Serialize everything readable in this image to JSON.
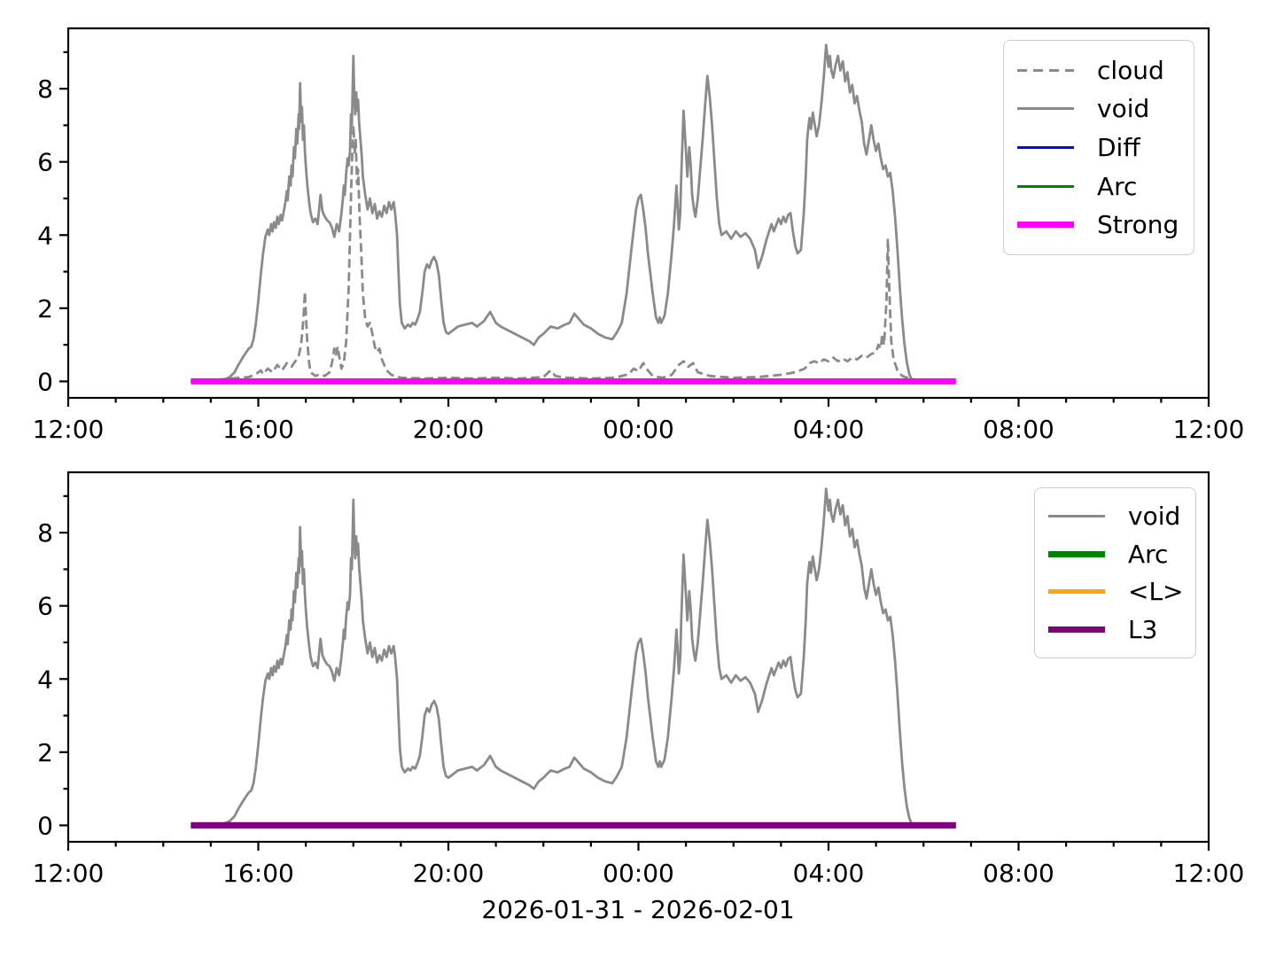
{
  "figure": {
    "background": "#ffffff",
    "xlabel": "2026-01-31 - 2026-02-01"
  },
  "shared": {
    "note_x_units": "hours after 12:00",
    "flat_zero": [
      [
        2.58,
        0
      ],
      [
        18.68,
        0
      ]
    ],
    "void": [
      [
        2.58,
        0
      ],
      [
        3.0,
        0.02
      ],
      [
        3.2,
        0.04
      ],
      [
        3.3,
        0.06
      ],
      [
        3.4,
        0.12
      ],
      [
        3.5,
        0.25
      ],
      [
        3.58,
        0.45
      ],
      [
        3.65,
        0.6
      ],
      [
        3.72,
        0.75
      ],
      [
        3.8,
        0.9
      ],
      [
        3.85,
        0.95
      ],
      [
        3.9,
        1.15
      ],
      [
        3.95,
        1.6
      ],
      [
        4.0,
        2.2
      ],
      [
        4.05,
        2.9
      ],
      [
        4.1,
        3.5
      ],
      [
        4.15,
        3.95
      ],
      [
        4.2,
        4.15
      ],
      [
        4.23,
        4.0
      ],
      [
        4.27,
        4.3
      ],
      [
        4.3,
        4.1
      ],
      [
        4.33,
        4.35
      ],
      [
        4.37,
        4.2
      ],
      [
        4.4,
        4.5
      ],
      [
        4.43,
        4.3
      ],
      [
        4.47,
        4.55
      ],
      [
        4.5,
        4.4
      ],
      [
        4.53,
        4.6
      ],
      [
        4.57,
        4.9
      ],
      [
        4.6,
        5.2
      ],
      [
        4.62,
        4.95
      ],
      [
        4.65,
        5.6
      ],
      [
        4.68,
        5.35
      ],
      [
        4.7,
        5.9
      ],
      [
        4.72,
        5.6
      ],
      [
        4.75,
        6.4
      ],
      [
        4.77,
        6.1
      ],
      [
        4.8,
        6.9
      ],
      [
        4.82,
        6.5
      ],
      [
        4.85,
        7.3
      ],
      [
        4.86,
        6.9
      ],
      [
        4.88,
        8.15
      ],
      [
        4.9,
        7.1
      ],
      [
        4.92,
        7.5
      ],
      [
        4.94,
        6.6
      ],
      [
        4.96,
        7.0
      ],
      [
        4.98,
        6.3
      ],
      [
        5.0,
        5.9
      ],
      [
        5.03,
        5.4
      ],
      [
        5.07,
        4.9
      ],
      [
        5.1,
        4.6
      ],
      [
        5.15,
        4.35
      ],
      [
        5.2,
        4.45
      ],
      [
        5.25,
        4.3
      ],
      [
        5.31,
        5.1
      ],
      [
        5.35,
        4.65
      ],
      [
        5.4,
        4.5
      ],
      [
        5.45,
        4.4
      ],
      [
        5.5,
        4.35
      ],
      [
        5.55,
        4.2
      ],
      [
        5.6,
        3.95
      ],
      [
        5.65,
        4.3
      ],
      [
        5.7,
        4.1
      ],
      [
        5.75,
        4.6
      ],
      [
        5.78,
        5.0
      ],
      [
        5.8,
        5.35
      ],
      [
        5.82,
        5.1
      ],
      [
        5.85,
        5.7
      ],
      [
        5.88,
        6.1
      ],
      [
        5.9,
        5.9
      ],
      [
        5.93,
        6.3
      ],
      [
        5.95,
        7.3
      ],
      [
        5.97,
        7.0
      ],
      [
        6.0,
        8.9
      ],
      [
        6.02,
        7.8
      ],
      [
        6.04,
        7.3
      ],
      [
        6.06,
        7.9
      ],
      [
        6.08,
        7.4
      ],
      [
        6.1,
        7.7
      ],
      [
        6.12,
        7.1
      ],
      [
        6.15,
        6.6
      ],
      [
        6.18,
        6.1
      ],
      [
        6.2,
        5.6
      ],
      [
        6.25,
        5.1
      ],
      [
        6.3,
        4.7
      ],
      [
        6.35,
        5.0
      ],
      [
        6.4,
        4.6
      ],
      [
        6.45,
        4.85
      ],
      [
        6.5,
        4.45
      ],
      [
        6.55,
        4.65
      ],
      [
        6.6,
        4.5
      ],
      [
        6.65,
        4.8
      ],
      [
        6.7,
        4.6
      ],
      [
        6.75,
        4.9
      ],
      [
        6.8,
        4.7
      ],
      [
        6.85,
        4.9
      ],
      [
        6.88,
        4.6
      ],
      [
        6.92,
        4.0
      ],
      [
        6.95,
        3.0
      ],
      [
        6.98,
        2.1
      ],
      [
        7.02,
        1.6
      ],
      [
        7.08,
        1.45
      ],
      [
        7.15,
        1.55
      ],
      [
        7.2,
        1.5
      ],
      [
        7.25,
        1.6
      ],
      [
        7.3,
        1.55
      ],
      [
        7.35,
        1.7
      ],
      [
        7.4,
        1.9
      ],
      [
        7.45,
        2.4
      ],
      [
        7.5,
        3.0
      ],
      [
        7.55,
        3.2
      ],
      [
        7.6,
        3.1
      ],
      [
        7.65,
        3.3
      ],
      [
        7.7,
        3.4
      ],
      [
        7.75,
        3.25
      ],
      [
        7.8,
        2.9
      ],
      [
        7.85,
        2.2
      ],
      [
        7.9,
        1.6
      ],
      [
        7.95,
        1.35
      ],
      [
        8.0,
        1.3
      ],
      [
        8.1,
        1.4
      ],
      [
        8.2,
        1.5
      ],
      [
        8.35,
        1.55
      ],
      [
        8.5,
        1.6
      ],
      [
        8.6,
        1.5
      ],
      [
        8.75,
        1.65
      ],
      [
        8.88,
        1.9
      ],
      [
        9.0,
        1.6
      ],
      [
        9.1,
        1.5
      ],
      [
        9.25,
        1.4
      ],
      [
        9.4,
        1.3
      ],
      [
        9.55,
        1.2
      ],
      [
        9.7,
        1.1
      ],
      [
        9.8,
        1.0
      ],
      [
        9.9,
        1.2
      ],
      [
        10.0,
        1.3
      ],
      [
        10.15,
        1.5
      ],
      [
        10.3,
        1.45
      ],
      [
        10.45,
        1.55
      ],
      [
        10.55,
        1.6
      ],
      [
        10.65,
        1.85
      ],
      [
        10.75,
        1.7
      ],
      [
        10.85,
        1.55
      ],
      [
        11.0,
        1.45
      ],
      [
        11.15,
        1.3
      ],
      [
        11.3,
        1.2
      ],
      [
        11.45,
        1.15
      ],
      [
        11.55,
        1.35
      ],
      [
        11.65,
        1.6
      ],
      [
        11.75,
        2.4
      ],
      [
        11.85,
        3.6
      ],
      [
        11.95,
        4.7
      ],
      [
        12.0,
        5.0
      ],
      [
        12.05,
        5.1
      ],
      [
        12.1,
        4.7
      ],
      [
        12.15,
        4.2
      ],
      [
        12.2,
        3.5
      ],
      [
        12.3,
        2.4
      ],
      [
        12.37,
        1.75
      ],
      [
        12.42,
        1.6
      ],
      [
        12.45,
        1.75
      ],
      [
        12.48,
        1.6
      ],
      [
        12.55,
        1.8
      ],
      [
        12.62,
        2.4
      ],
      [
        12.7,
        3.5
      ],
      [
        12.75,
        4.3
      ],
      [
        12.8,
        5.35
      ],
      [
        12.82,
        4.9
      ],
      [
        12.85,
        4.15
      ],
      [
        12.88,
        4.6
      ],
      [
        12.9,
        5.6
      ],
      [
        12.95,
        7.4
      ],
      [
        13.0,
        6.3
      ],
      [
        13.03,
        5.6
      ],
      [
        13.07,
        6.4
      ],
      [
        13.1,
        5.9
      ],
      [
        13.13,
        5.1
      ],
      [
        13.17,
        4.7
      ],
      [
        13.2,
        4.5
      ],
      [
        13.25,
        5.0
      ],
      [
        13.3,
        5.8
      ],
      [
        13.35,
        6.6
      ],
      [
        13.4,
        7.5
      ],
      [
        13.45,
        8.35
      ],
      [
        13.5,
        7.8
      ],
      [
        13.55,
        7.0
      ],
      [
        13.6,
        6.0
      ],
      [
        13.65,
        5.0
      ],
      [
        13.7,
        4.3
      ],
      [
        13.75,
        4.0
      ],
      [
        13.85,
        4.1
      ],
      [
        13.95,
        3.9
      ],
      [
        14.05,
        4.1
      ],
      [
        14.15,
        3.95
      ],
      [
        14.25,
        4.05
      ],
      [
        14.35,
        3.9
      ],
      [
        14.45,
        3.6
      ],
      [
        14.52,
        3.1
      ],
      [
        14.6,
        3.4
      ],
      [
        14.7,
        3.9
      ],
      [
        14.8,
        4.3
      ],
      [
        14.85,
        4.1
      ],
      [
        14.95,
        4.45
      ],
      [
        15.0,
        4.3
      ],
      [
        15.05,
        4.5
      ],
      [
        15.1,
        4.35
      ],
      [
        15.15,
        4.55
      ],
      [
        15.2,
        4.6
      ],
      [
        15.25,
        4.1
      ],
      [
        15.3,
        3.7
      ],
      [
        15.35,
        3.5
      ],
      [
        15.42,
        3.6
      ],
      [
        15.48,
        4.6
      ],
      [
        15.52,
        5.6
      ],
      [
        15.55,
        6.6
      ],
      [
        15.58,
        7.0
      ],
      [
        15.6,
        7.2
      ],
      [
        15.63,
        6.9
      ],
      [
        15.67,
        7.35
      ],
      [
        15.7,
        7.1
      ],
      [
        15.75,
        6.7
      ],
      [
        15.8,
        7.0
      ],
      [
        15.85,
        7.6
      ],
      [
        15.9,
        8.3
      ],
      [
        15.95,
        9.2
      ],
      [
        16.0,
        8.6
      ],
      [
        16.03,
        8.9
      ],
      [
        16.06,
        8.5
      ],
      [
        16.1,
        8.3
      ],
      [
        16.15,
        8.65
      ],
      [
        16.2,
        8.9
      ],
      [
        16.25,
        8.5
      ],
      [
        16.3,
        8.75
      ],
      [
        16.35,
        8.2
      ],
      [
        16.4,
        8.45
      ],
      [
        16.45,
        7.9
      ],
      [
        16.5,
        8.1
      ],
      [
        16.55,
        7.6
      ],
      [
        16.6,
        7.8
      ],
      [
        16.65,
        7.4
      ],
      [
        16.7,
        7.1
      ],
      [
        16.75,
        6.5
      ],
      [
        16.8,
        6.2
      ],
      [
        16.85,
        6.6
      ],
      [
        16.9,
        7.0
      ],
      [
        16.95,
        6.6
      ],
      [
        17.0,
        6.3
      ],
      [
        17.05,
        6.5
      ],
      [
        17.1,
        6.1
      ],
      [
        17.15,
        5.8
      ],
      [
        17.2,
        5.9
      ],
      [
        17.25,
        5.6
      ],
      [
        17.3,
        5.7
      ],
      [
        17.35,
        5.2
      ],
      [
        17.4,
        4.5
      ],
      [
        17.45,
        3.6
      ],
      [
        17.5,
        2.6
      ],
      [
        17.55,
        1.7
      ],
      [
        17.6,
        1.0
      ],
      [
        17.65,
        0.5
      ],
      [
        17.7,
        0.2
      ],
      [
        17.75,
        0.05
      ],
      [
        17.83,
        0
      ]
    ],
    "cloud": [
      [
        2.58,
        0.02
      ],
      [
        2.8,
        0.05
      ],
      [
        3.0,
        0.04
      ],
      [
        3.3,
        0.06
      ],
      [
        3.6,
        0.1
      ],
      [
        3.8,
        0.12
      ],
      [
        3.95,
        0.2
      ],
      [
        4.05,
        0.3
      ],
      [
        4.1,
        0.2
      ],
      [
        4.2,
        0.35
      ],
      [
        4.3,
        0.25
      ],
      [
        4.4,
        0.45
      ],
      [
        4.5,
        0.3
      ],
      [
        4.6,
        0.5
      ],
      [
        4.7,
        0.4
      ],
      [
        4.78,
        0.55
      ],
      [
        4.85,
        0.7
      ],
      [
        4.9,
        1.0
      ],
      [
        4.95,
        1.7
      ],
      [
        4.98,
        2.45
      ],
      [
        5.0,
        1.9
      ],
      [
        5.03,
        1.1
      ],
      [
        5.07,
        0.5
      ],
      [
        5.1,
        0.25
      ],
      [
        5.2,
        0.15
      ],
      [
        5.3,
        0.2
      ],
      [
        5.4,
        0.15
      ],
      [
        5.5,
        0.25
      ],
      [
        5.55,
        0.5
      ],
      [
        5.6,
        0.9
      ],
      [
        5.63,
        0.7
      ],
      [
        5.67,
        0.95
      ],
      [
        5.7,
        0.7
      ],
      [
        5.75,
        0.35
      ],
      [
        5.8,
        0.5
      ],
      [
        5.85,
        1.1
      ],
      [
        5.9,
        2.5
      ],
      [
        5.93,
        4.0
      ],
      [
        5.96,
        5.5
      ],
      [
        5.98,
        6.3
      ],
      [
        6.0,
        7.0
      ],
      [
        6.03,
        6.2
      ],
      [
        6.05,
        6.6
      ],
      [
        6.08,
        5.4
      ],
      [
        6.1,
        5.8
      ],
      [
        6.13,
        4.6
      ],
      [
        6.17,
        3.4
      ],
      [
        6.2,
        2.4
      ],
      [
        6.25,
        1.7
      ],
      [
        6.3,
        1.5
      ],
      [
        6.35,
        1.6
      ],
      [
        6.4,
        1.3
      ],
      [
        6.45,
        0.95
      ],
      [
        6.5,
        0.8
      ],
      [
        6.55,
        0.9
      ],
      [
        6.6,
        0.6
      ],
      [
        6.7,
        0.3
      ],
      [
        6.8,
        0.18
      ],
      [
        7.0,
        0.1
      ],
      [
        7.5,
        0.08
      ],
      [
        8.0,
        0.1
      ],
      [
        8.5,
        0.08
      ],
      [
        9.0,
        0.1
      ],
      [
        9.5,
        0.08
      ],
      [
        10.0,
        0.12
      ],
      [
        10.15,
        0.3
      ],
      [
        10.25,
        0.15
      ],
      [
        10.5,
        0.1
      ],
      [
        11.0,
        0.08
      ],
      [
        11.5,
        0.1
      ],
      [
        11.8,
        0.2
      ],
      [
        11.9,
        0.35
      ],
      [
        12.0,
        0.28
      ],
      [
        12.1,
        0.5
      ],
      [
        12.2,
        0.3
      ],
      [
        12.3,
        0.15
      ],
      [
        12.5,
        0.1
      ],
      [
        12.7,
        0.18
      ],
      [
        12.85,
        0.45
      ],
      [
        12.95,
        0.55
      ],
      [
        13.05,
        0.4
      ],
      [
        13.15,
        0.5
      ],
      [
        13.25,
        0.25
      ],
      [
        13.5,
        0.15
      ],
      [
        14.0,
        0.1
      ],
      [
        14.5,
        0.12
      ],
      [
        15.0,
        0.18
      ],
      [
        15.3,
        0.25
      ],
      [
        15.5,
        0.35
      ],
      [
        15.6,
        0.5
      ],
      [
        15.7,
        0.55
      ],
      [
        15.8,
        0.5
      ],
      [
        15.9,
        0.6
      ],
      [
        16.0,
        0.55
      ],
      [
        16.1,
        0.65
      ],
      [
        16.2,
        0.55
      ],
      [
        16.3,
        0.62
      ],
      [
        16.4,
        0.55
      ],
      [
        16.5,
        0.65
      ],
      [
        16.6,
        0.6
      ],
      [
        16.7,
        0.7
      ],
      [
        16.8,
        0.65
      ],
      [
        16.9,
        0.75
      ],
      [
        17.0,
        0.8
      ],
      [
        17.05,
        1.0
      ],
      [
        17.1,
        0.9
      ],
      [
        17.13,
        1.3
      ],
      [
        17.17,
        1.0
      ],
      [
        17.22,
        2.2
      ],
      [
        17.25,
        3.9
      ],
      [
        17.28,
        2.5
      ],
      [
        17.32,
        1.1
      ],
      [
        17.37,
        0.6
      ],
      [
        17.45,
        0.3
      ],
      [
        17.55,
        0.15
      ],
      [
        17.7,
        0.08
      ],
      [
        17.9,
        0.02
      ]
    ]
  },
  "chart_data": [
    {
      "type": "line",
      "title": "",
      "xlabel": "",
      "ylabel": "",
      "xlim": [
        0,
        24
      ],
      "ylim": [
        -0.45,
        9.65
      ],
      "x_major_ticks": [
        0,
        4,
        8,
        12,
        16,
        20,
        24
      ],
      "x_tick_labels": [
        "12:00",
        "16:00",
        "20:00",
        "00:00",
        "04:00",
        "08:00",
        "12:00"
      ],
      "x_minor_step": 1,
      "y_major_ticks": [
        0,
        2,
        4,
        6,
        8
      ],
      "y_tick_labels": [
        "0",
        "2",
        "4",
        "6",
        "8"
      ],
      "y_minor_ticks": [
        1,
        3,
        5,
        7,
        9
      ],
      "grid": false,
      "legend_position": "upper right",
      "series": [
        {
          "name": "cloud",
          "color": "#8a8a8a",
          "width": 2.8,
          "dash": "10 5",
          "points_key": "cloud"
        },
        {
          "name": "void",
          "color": "#8a8a8a",
          "width": 2.8,
          "dash": null,
          "points_key": "void"
        },
        {
          "name": "Diff",
          "color": "#0000ff",
          "width": 2.8,
          "dash": null,
          "points_key": "flat_zero"
        },
        {
          "name": "Arc",
          "color": "#008000",
          "width": 2.8,
          "dash": null,
          "points_key": "flat_zero"
        },
        {
          "name": "Strong",
          "color": "#ff00ff",
          "width": 7,
          "dash": null,
          "points_key": "flat_zero"
        }
      ]
    },
    {
      "type": "line",
      "title": "",
      "xlabel": "2026-01-31 - 2026-02-01",
      "ylabel": "",
      "xlim": [
        0,
        24
      ],
      "ylim": [
        -0.45,
        9.65
      ],
      "x_major_ticks": [
        0,
        4,
        8,
        12,
        16,
        20,
        24
      ],
      "x_tick_labels": [
        "12:00",
        "16:00",
        "20:00",
        "00:00",
        "04:00",
        "08:00",
        "12:00"
      ],
      "x_minor_step": 1,
      "y_major_ticks": [
        0,
        2,
        4,
        6,
        8
      ],
      "y_tick_labels": [
        "0",
        "2",
        "4",
        "6",
        "8"
      ],
      "y_minor_ticks": [
        1,
        3,
        5,
        7,
        9
      ],
      "grid": false,
      "legend_position": "upper right",
      "series": [
        {
          "name": "void",
          "color": "#8a8a8a",
          "width": 2.8,
          "dash": null,
          "points_key": "void"
        },
        {
          "name": "Arc",
          "color": "#008000",
          "width": 7,
          "dash": null,
          "points_key": "flat_zero"
        },
        {
          "name": "<L>",
          "color": "#ffa500",
          "width": 4.5,
          "dash": null,
          "points_key": "flat_zero"
        },
        {
          "name": "L3",
          "color": "#800080",
          "width": 7,
          "dash": null,
          "points_key": "flat_zero"
        }
      ]
    }
  ]
}
